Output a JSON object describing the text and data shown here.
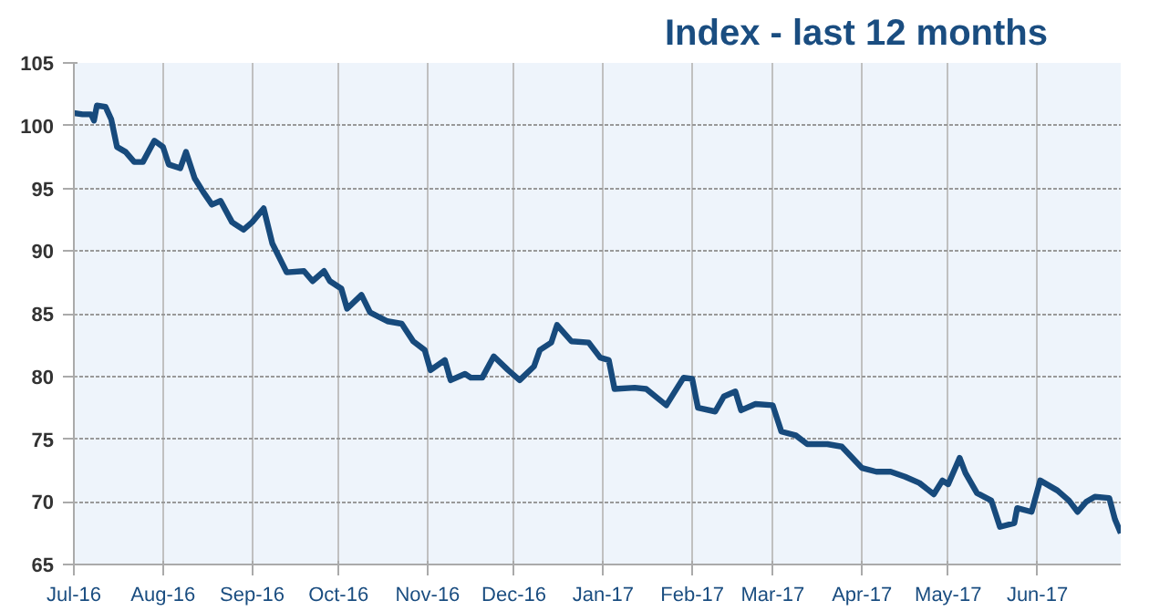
{
  "chart_data": {
    "type": "line",
    "title": "Index - last 12 months",
    "x": [
      "2016-07-01",
      "2016-07-04",
      "2016-07-07",
      "2016-07-08",
      "2016-07-09",
      "2016-07-12",
      "2016-07-14",
      "2016-07-16",
      "2016-07-19",
      "2016-07-22",
      "2016-07-25",
      "2016-07-29",
      "2016-08-01",
      "2016-08-03",
      "2016-08-07",
      "2016-08-09",
      "2016-08-12",
      "2016-08-15",
      "2016-08-18",
      "2016-08-21",
      "2016-08-25",
      "2016-08-29",
      "2016-09-01",
      "2016-09-05",
      "2016-09-08",
      "2016-09-13",
      "2016-09-19",
      "2016-09-22",
      "2016-09-26",
      "2016-09-28",
      "2016-10-02",
      "2016-10-04",
      "2016-10-09",
      "2016-10-12",
      "2016-10-18",
      "2016-10-23",
      "2016-10-27",
      "2016-10-31",
      "2016-11-02",
      "2016-11-07",
      "2016-11-09",
      "2016-11-14",
      "2016-11-16",
      "2016-11-20",
      "2016-11-24",
      "2016-11-29",
      "2016-12-03",
      "2016-12-08",
      "2016-12-10",
      "2016-12-14",
      "2016-12-16",
      "2016-12-21",
      "2016-12-27",
      "2016-12-31",
      "2017-01-03",
      "2017-01-05",
      "2017-01-12",
      "2017-01-16",
      "2017-01-23",
      "2017-01-29",
      "2017-02-01",
      "2017-02-03",
      "2017-02-09",
      "2017-02-12",
      "2017-02-16",
      "2017-02-18",
      "2017-02-23",
      "2017-03-01",
      "2017-03-04",
      "2017-03-09",
      "2017-03-13",
      "2017-03-20",
      "2017-03-25",
      "2017-04-01",
      "2017-04-06",
      "2017-04-11",
      "2017-04-16",
      "2017-04-21",
      "2017-04-26",
      "2017-04-29",
      "2017-05-01",
      "2017-05-05",
      "2017-05-07",
      "2017-05-11",
      "2017-05-16",
      "2017-05-19",
      "2017-05-24",
      "2017-05-25",
      "2017-05-30",
      "2017-06-02",
      "2017-06-08",
      "2017-06-12",
      "2017-06-15",
      "2017-06-18",
      "2017-06-21",
      "2017-06-26",
      "2017-06-28",
      "2017-06-30"
    ],
    "series": [
      {
        "color": "#174a7c",
        "values": [
          101.0,
          100.9,
          100.9,
          100.4,
          101.6,
          101.5,
          100.5,
          98.3,
          97.9,
          97.1,
          97.1,
          98.8,
          98.3,
          96.9,
          96.6,
          97.9,
          95.8,
          94.7,
          93.7,
          94.0,
          92.3,
          91.7,
          92.3,
          93.4,
          90.6,
          88.3,
          88.4,
          87.6,
          88.4,
          87.6,
          87.0,
          85.4,
          86.5,
          85.1,
          84.4,
          84.2,
          82.8,
          82.1,
          80.5,
          81.3,
          79.7,
          80.2,
          79.9,
          79.9,
          81.6,
          80.5,
          79.7,
          80.8,
          82.1,
          82.7,
          84.1,
          82.8,
          82.7,
          81.5,
          81.3,
          79.0,
          79.1,
          79.0,
          77.7,
          79.9,
          79.8,
          77.5,
          77.2,
          78.4,
          78.8,
          77.3,
          77.8,
          77.7,
          75.6,
          75.3,
          74.6,
          74.6,
          74.4,
          72.7,
          72.4,
          72.4,
          72.0,
          71.5,
          70.6,
          71.7,
          71.4,
          73.5,
          72.3,
          70.7,
          70.1,
          68.0,
          68.3,
          69.5,
          69.2,
          71.7,
          70.9,
          70.1,
          69.2,
          70.0,
          70.4,
          70.3,
          68.6,
          67.5
        ]
      }
    ],
    "xlim": [
      "2016-07-01",
      "2017-06-30"
    ],
    "xticks": [
      {
        "value": "2016-07-01",
        "label": "Jul-16"
      },
      {
        "value": "2016-08-01",
        "label": "Aug-16"
      },
      {
        "value": "2016-09-01",
        "label": "Sep-16"
      },
      {
        "value": "2016-10-01",
        "label": "Oct-16"
      },
      {
        "value": "2016-11-01",
        "label": "Nov-16"
      },
      {
        "value": "2016-12-01",
        "label": "Dec-16"
      },
      {
        "value": "2017-01-01",
        "label": "Jan-17"
      },
      {
        "value": "2017-02-01",
        "label": "Feb-17"
      },
      {
        "value": "2017-03-01",
        "label": "Mar-17"
      },
      {
        "value": "2017-04-01",
        "label": "Apr-17"
      },
      {
        "value": "2017-05-01",
        "label": "May-17"
      },
      {
        "value": "2017-06-01",
        "label": "Jun-17"
      }
    ],
    "ylim": [
      65,
      105
    ],
    "yticks": [
      65,
      70,
      75,
      80,
      85,
      90,
      95,
      100,
      105
    ],
    "grid": true,
    "marker": "none",
    "line_style": "solid"
  }
}
